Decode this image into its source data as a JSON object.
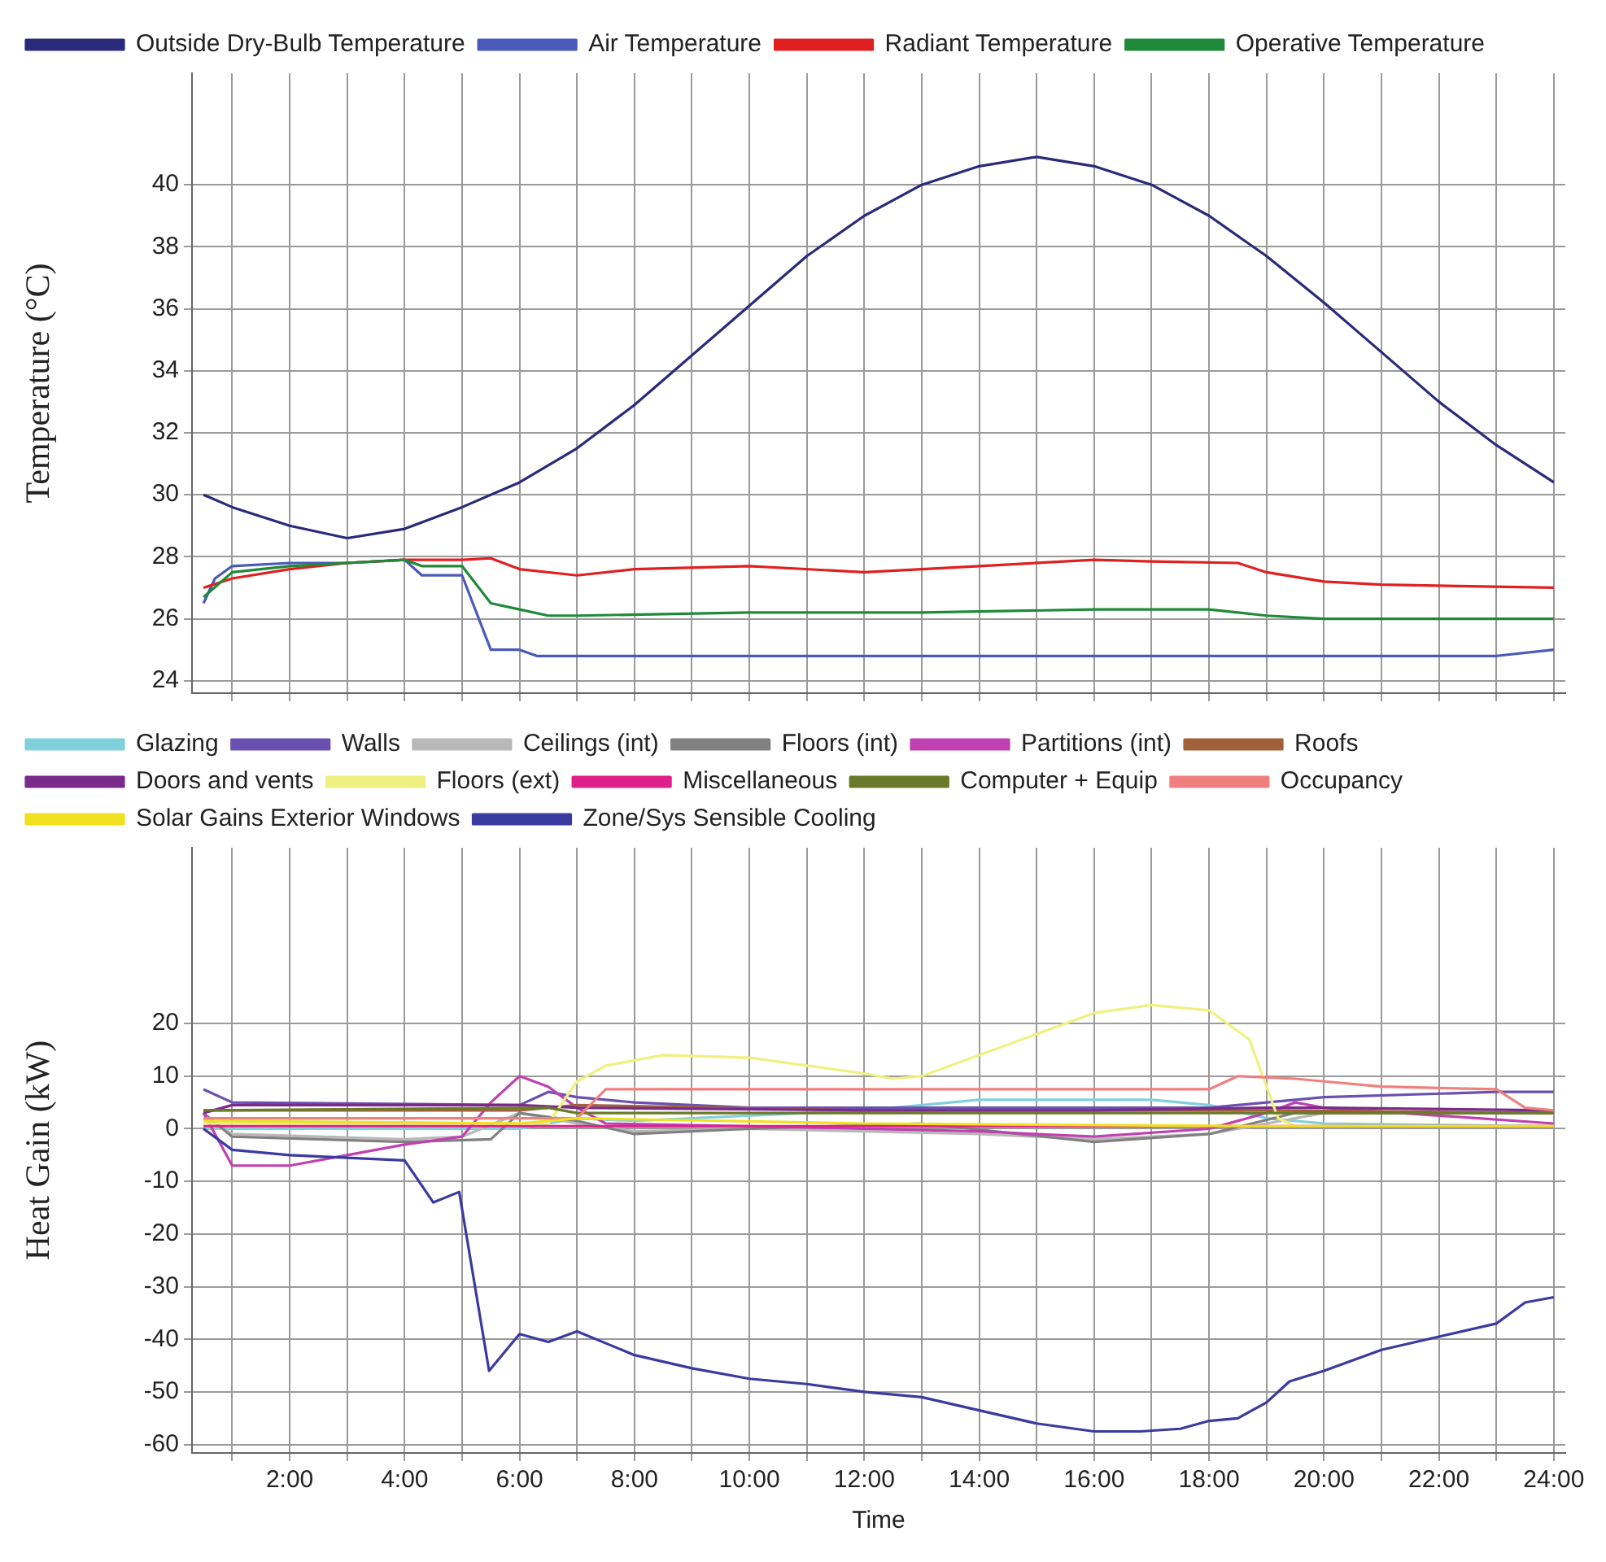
{
  "chart_data": [
    {
      "type": "line",
      "ylabel": "Temperature (°C)",
      "xlim": [
        0.3,
        24.2
      ],
      "ylim": [
        23.6,
        43.6
      ],
      "yticks": [
        24,
        26,
        28,
        30,
        32,
        34,
        36,
        38,
        40
      ],
      "xticks": [
        {
          "value": 1,
          "label": null
        },
        {
          "value": 2,
          "label": null
        },
        {
          "value": 3,
          "label": null
        },
        {
          "value": 4,
          "label": null
        },
        {
          "value": 5,
          "label": null
        },
        {
          "value": 6,
          "label": null
        },
        {
          "value": 7,
          "label": null
        },
        {
          "value": 8,
          "label": null
        },
        {
          "value": 9,
          "label": null
        },
        {
          "value": 10,
          "label": null
        },
        {
          "value": 11,
          "label": null
        },
        {
          "value": 12,
          "label": null
        },
        {
          "value": 13,
          "label": null
        },
        {
          "value": 14,
          "label": null
        },
        {
          "value": 15,
          "label": null
        },
        {
          "value": 16,
          "label": null
        },
        {
          "value": 17,
          "label": null
        },
        {
          "value": 18,
          "label": null
        },
        {
          "value": 19,
          "label": null
        },
        {
          "value": 20,
          "label": null
        },
        {
          "value": 21,
          "label": null
        },
        {
          "value": 22,
          "label": null
        },
        {
          "value": 23,
          "label": null
        },
        {
          "value": 24,
          "label": null
        }
      ],
      "tick_labels": "y",
      "grid": true,
      "legend": "top",
      "series": [
        {
          "name": "Outside Dry-Bulb Temperature",
          "color": "#2a2a7a",
          "x": [
            0.5,
            1,
            2,
            3,
            4,
            5,
            6,
            7,
            8,
            9,
            10,
            11,
            12,
            13,
            14,
            15,
            16,
            17,
            18,
            19,
            20,
            21,
            22,
            23,
            24
          ],
          "values": [
            30.0,
            29.6,
            29.0,
            28.6,
            28.9,
            29.6,
            30.4,
            31.5,
            32.9,
            34.5,
            36.1,
            37.7,
            39.0,
            40.0,
            40.6,
            40.9,
            40.6,
            40.0,
            39.0,
            37.7,
            36.2,
            34.6,
            33.0,
            31.6,
            30.4
          ]
        },
        {
          "name": "Air Temperature",
          "color": "#4a5ab8",
          "x": [
            0.5,
            0.7,
            1,
            2,
            3,
            4,
            4.3,
            5,
            5.5,
            6,
            6.3,
            10,
            15,
            20,
            23,
            24
          ],
          "values": [
            26.5,
            27.3,
            27.7,
            27.8,
            27.8,
            27.9,
            27.4,
            27.4,
            25.0,
            25.0,
            24.8,
            24.8,
            24.8,
            24.8,
            24.8,
            25.0
          ]
        },
        {
          "name": "Radiant Temperature",
          "color": "#e02020",
          "x": [
            0.5,
            1,
            2,
            3,
            4,
            5,
            5.5,
            6,
            7,
            8,
            10,
            12,
            14,
            16,
            17,
            18.5,
            19,
            20,
            21,
            24
          ],
          "values": [
            27.0,
            27.3,
            27.6,
            27.8,
            27.9,
            27.9,
            27.95,
            27.6,
            27.4,
            27.6,
            27.7,
            27.5,
            27.7,
            27.9,
            27.85,
            27.8,
            27.5,
            27.2,
            27.1,
            27.0
          ]
        },
        {
          "name": "Operative Temperature",
          "color": "#208a3a",
          "x": [
            0.5,
            1,
            2,
            3,
            4,
            4.3,
            5,
            5.5,
            6,
            6.5,
            7,
            10,
            13,
            16,
            18,
            19,
            20,
            24
          ],
          "values": [
            26.7,
            27.5,
            27.7,
            27.8,
            27.9,
            27.7,
            27.7,
            26.5,
            26.3,
            26.1,
            26.1,
            26.2,
            26.2,
            26.3,
            26.3,
            26.1,
            26.0,
            26.0
          ]
        }
      ]
    },
    {
      "type": "line",
      "xlabel": "Time",
      "ylabel": "Heat Gain (kW)",
      "xlim": [
        0.3,
        24.2
      ],
      "ylim": [
        -61.6,
        53.4
      ],
      "yticks": [
        -60,
        -50,
        -40,
        -30,
        -20,
        -10,
        0,
        10,
        20
      ],
      "xticks": [
        {
          "value": 1,
          "label": null
        },
        {
          "value": 2,
          "label": "2:00"
        },
        {
          "value": 3,
          "label": null
        },
        {
          "value": 4,
          "label": "4:00"
        },
        {
          "value": 5,
          "label": null
        },
        {
          "value": 6,
          "label": "6:00"
        },
        {
          "value": 7,
          "label": null
        },
        {
          "value": 8,
          "label": "8:00"
        },
        {
          "value": 9,
          "label": null
        },
        {
          "value": 10,
          "label": "10:00"
        },
        {
          "value": 11,
          "label": null
        },
        {
          "value": 12,
          "label": "12:00"
        },
        {
          "value": 13,
          "label": null
        },
        {
          "value": 14,
          "label": "14:00"
        },
        {
          "value": 15,
          "label": null
        },
        {
          "value": 16,
          "label": "16:00"
        },
        {
          "value": 17,
          "label": null
        },
        {
          "value": 18,
          "label": "18:00"
        },
        {
          "value": 19,
          "label": null
        },
        {
          "value": 20,
          "label": "20:00"
        },
        {
          "value": 21,
          "label": null
        },
        {
          "value": 22,
          "label": "22:00"
        },
        {
          "value": 23,
          "label": null
        },
        {
          "value": 24,
          "label": "24:00"
        }
      ],
      "grid": true,
      "legend": "top",
      "series": [
        {
          "name": "Glazing",
          "color": "#80d0dc",
          "x": [
            0.5,
            6,
            7,
            8,
            12,
            14,
            17,
            18,
            19,
            20,
            24
          ],
          "values": [
            0,
            0,
            2,
            1.5,
            3.5,
            5.5,
            5.5,
            4.5,
            2,
            1,
            0.5
          ]
        },
        {
          "name": "Walls",
          "color": "#6a50b0",
          "x": [
            0.5,
            1,
            6,
            6.5,
            7,
            8,
            10,
            18,
            19,
            20,
            23,
            24
          ],
          "values": [
            7.5,
            5,
            4.5,
            7,
            6,
            5,
            4,
            4,
            5,
            6,
            7,
            7
          ]
        },
        {
          "name": "Ceilings (int)",
          "color": "#b8b8b8",
          "x": [
            0.5,
            1,
            4,
            5,
            6,
            7,
            8,
            10,
            14,
            16,
            18,
            19,
            20,
            24
          ],
          "values": [
            2,
            -1,
            -2,
            -1.5,
            3,
            1,
            -0.5,
            0,
            -1,
            -2,
            -1,
            1,
            3,
            3
          ]
        },
        {
          "name": "Floors (int)",
          "color": "#808080",
          "x": [
            0.5,
            1,
            4,
            5.5,
            6,
            7,
            8,
            10,
            13,
            16,
            18,
            19.5,
            24
          ],
          "values": [
            3,
            -1.5,
            -2.5,
            -2,
            3,
            1.5,
            -1,
            0,
            1,
            -2.5,
            -1,
            3,
            3
          ]
        },
        {
          "name": "Partitions (int)",
          "color": "#c040b0",
          "x": [
            0.5,
            1,
            2,
            3,
            4,
            5,
            5.5,
            6,
            6.5,
            7,
            7.5,
            10,
            14,
            16,
            18,
            19,
            19.5,
            20,
            22,
            24
          ],
          "values": [
            3,
            -7,
            -7,
            -5,
            -3,
            -1.5,
            5,
            10,
            8,
            4,
            1,
            0.5,
            -0.5,
            -1.5,
            0,
            3,
            5,
            4,
            2.5,
            1
          ]
        },
        {
          "name": "Roofs",
          "color": "#a0603a",
          "x": [
            0.5,
            6,
            7,
            12,
            19,
            24
          ],
          "values": [
            3.5,
            3.5,
            4.5,
            3.5,
            3.5,
            3
          ]
        },
        {
          "name": "Doors and vents",
          "color": "#7a2a8a",
          "x": [
            0.5,
            1,
            6,
            7,
            12,
            16,
            19,
            20,
            24
          ],
          "values": [
            3,
            4.5,
            4.5,
            4,
            3.5,
            3.5,
            4,
            4,
            3.5
          ]
        },
        {
          "name": "Floors (ext)",
          "color": "#f0f080",
          "x": [
            0.5,
            6.5,
            7,
            7.5,
            8.5,
            10,
            12,
            12.5,
            13,
            15,
            16,
            17,
            18,
            18.7,
            19.2,
            19.5,
            24
          ],
          "values": [
            1,
            1,
            9,
            12,
            14,
            13.5,
            10.5,
            9.5,
            10,
            18,
            22,
            23.5,
            22.5,
            17,
            2,
            0.5,
            0.5
          ]
        },
        {
          "name": "Miscellaneous",
          "color": "#e0208a",
          "x": [
            0.5,
            24
          ],
          "values": [
            0.5,
            0.5
          ]
        },
        {
          "name": "Computer + Equip",
          "color": "#6b7a2a",
          "x": [
            0.5,
            6.5,
            7,
            24
          ],
          "values": [
            3.5,
            4,
            3,
            3
          ]
        },
        {
          "name": "Occupancy",
          "color": "#f08080",
          "x": [
            0.5,
            7,
            7.5,
            18,
            18.5,
            19.5,
            20,
            21,
            23,
            23.5,
            24
          ],
          "values": [
            2,
            2,
            7.5,
            7.5,
            10,
            9.5,
            9,
            8,
            7.5,
            4,
            3.5
          ]
        },
        {
          "name": "Solar Gains Exterior Windows",
          "color": "#f0e020",
          "x": [
            0.5,
            6,
            7,
            12,
            19,
            24
          ],
          "values": [
            1.5,
            1,
            2,
            1,
            0.5,
            0.5
          ]
        },
        {
          "name": "Zone/Sys Sensible Cooling",
          "color": "#3a3aa0",
          "x": [
            0.5,
            1,
            2,
            3,
            4,
            4.5,
            4.95,
            5.47,
            6,
            6.5,
            7,
            8,
            9,
            10,
            11,
            12,
            13,
            14,
            15,
            16,
            16.8,
            17.5,
            18,
            18.5,
            19,
            19.4,
            20,
            21,
            22,
            23,
            23.5,
            24
          ],
          "values": [
            0,
            -4,
            -5,
            -5.5,
            -6,
            -14,
            -12,
            -46,
            -39,
            -40.5,
            -38.5,
            -43,
            -45.5,
            -47.5,
            -48.5,
            -50,
            -51,
            -53.5,
            -56,
            -57.5,
            -57.5,
            -57,
            -55.5,
            -55,
            -52,
            -48,
            -46,
            -42,
            -39.5,
            -37,
            -33,
            -32
          ]
        }
      ]
    }
  ]
}
